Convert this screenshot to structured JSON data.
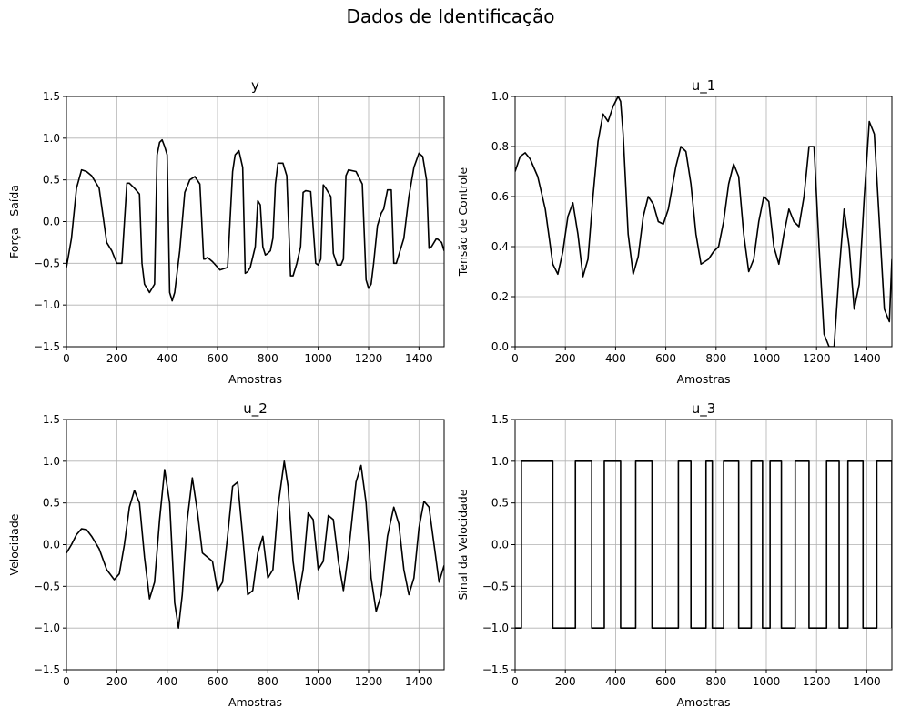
{
  "figure": {
    "suptitle": "Dados de Identificação",
    "line_color": "#000000",
    "grid_color": "#b0b0b0"
  },
  "chart_data": [
    {
      "type": "line",
      "title": "y",
      "xlabel": "Amostras",
      "ylabel": "Força - Saída",
      "xlim": [
        0,
        1500
      ],
      "ylim": [
        -1.5,
        1.5
      ],
      "xticks": [
        0,
        200,
        400,
        600,
        800,
        1000,
        1200,
        1400
      ],
      "xtick_labels": [
        "0",
        "200",
        "400",
        "600",
        "800",
        "1000",
        "1200",
        "1400"
      ],
      "yticks": [
        -1.5,
        -1.0,
        -0.5,
        0.0,
        0.5,
        1.0,
        1.5
      ],
      "ytick_labels": [
        "−1.5",
        "−1.0",
        "−0.5",
        "0.0",
        "0.5",
        "1.0",
        "1.5"
      ],
      "grid": true,
      "x": [
        0,
        20,
        40,
        60,
        80,
        100,
        130,
        160,
        180,
        200,
        220,
        240,
        250,
        270,
        290,
        300,
        310,
        330,
        350,
        360,
        370,
        380,
        390,
        400,
        410,
        420,
        430,
        450,
        470,
        490,
        510,
        530,
        545,
        550,
        560,
        580,
        610,
        640,
        660,
        670,
        685,
        700,
        710,
        720,
        730,
        750,
        760,
        770,
        780,
        790,
        800,
        810,
        820,
        830,
        840,
        860,
        875,
        890,
        900,
        915,
        930,
        940,
        950,
        970,
        990,
        1000,
        1010,
        1020,
        1030,
        1050,
        1060,
        1075,
        1090,
        1100,
        1110,
        1120,
        1150,
        1175,
        1190,
        1200,
        1210,
        1220,
        1235,
        1250,
        1260,
        1275,
        1290,
        1300,
        1310,
        1320,
        1340,
        1360,
        1380,
        1400,
        1415,
        1430,
        1440,
        1450,
        1470,
        1490,
        1500
      ],
      "y": [
        -0.55,
        -0.2,
        0.4,
        0.62,
        0.6,
        0.55,
        0.4,
        -0.25,
        -0.35,
        -0.5,
        -0.5,
        0.46,
        0.46,
        0.4,
        0.33,
        -0.5,
        -0.75,
        -0.85,
        -0.75,
        0.8,
        0.95,
        0.98,
        0.9,
        0.8,
        -0.85,
        -0.95,
        -0.85,
        -0.35,
        0.35,
        0.5,
        0.54,
        0.45,
        -0.45,
        -0.45,
        -0.43,
        -0.48,
        -0.58,
        -0.55,
        0.6,
        0.8,
        0.85,
        0.65,
        -0.62,
        -0.6,
        -0.55,
        -0.3,
        0.25,
        0.2,
        -0.3,
        -0.4,
        -0.38,
        -0.35,
        -0.2,
        0.45,
        0.7,
        0.7,
        0.55,
        -0.65,
        -0.65,
        -0.5,
        -0.3,
        0.35,
        0.37,
        0.36,
        -0.5,
        -0.52,
        -0.45,
        0.44,
        0.4,
        0.3,
        -0.38,
        -0.52,
        -0.52,
        -0.45,
        0.55,
        0.62,
        0.6,
        0.45,
        -0.7,
        -0.8,
        -0.75,
        -0.5,
        -0.05,
        0.1,
        0.15,
        0.38,
        0.38,
        -0.5,
        -0.5,
        -0.4,
        -0.2,
        0.3,
        0.65,
        0.82,
        0.78,
        0.5,
        -0.32,
        -0.3,
        -0.2,
        -0.25,
        -0.35
      ]
    },
    {
      "type": "line",
      "title": "u_1",
      "xlabel": "Amostras",
      "ylabel": "Tensão de Controle",
      "xlim": [
        0,
        1500
      ],
      "ylim": [
        0.0,
        1.0
      ],
      "xticks": [
        0,
        200,
        400,
        600,
        800,
        1000,
        1200,
        1400
      ],
      "xtick_labels": [
        "0",
        "200",
        "400",
        "600",
        "800",
        "1000",
        "1200",
        "1400"
      ],
      "yticks": [
        0.0,
        0.2,
        0.4,
        0.6,
        0.8,
        1.0
      ],
      "ytick_labels": [
        "0.0",
        "0.2",
        "0.4",
        "0.6",
        "0.8",
        "1.0"
      ],
      "grid": true,
      "x": [
        0,
        20,
        40,
        60,
        90,
        120,
        150,
        170,
        190,
        210,
        230,
        250,
        270,
        290,
        310,
        330,
        350,
        370,
        390,
        410,
        420,
        430,
        450,
        470,
        490,
        510,
        530,
        550,
        570,
        590,
        610,
        640,
        660,
        680,
        700,
        720,
        740,
        770,
        790,
        810,
        830,
        850,
        870,
        890,
        910,
        930,
        950,
        970,
        990,
        1010,
        1030,
        1050,
        1070,
        1090,
        1110,
        1130,
        1150,
        1170,
        1190,
        1210,
        1230,
        1250,
        1270,
        1290,
        1310,
        1330,
        1350,
        1370,
        1390,
        1410,
        1430,
        1450,
        1470,
        1490,
        1500
      ],
      "y": [
        0.7,
        0.76,
        0.775,
        0.75,
        0.68,
        0.55,
        0.33,
        0.29,
        0.38,
        0.52,
        0.575,
        0.45,
        0.28,
        0.35,
        0.6,
        0.82,
        0.93,
        0.9,
        0.96,
        1.0,
        0.98,
        0.85,
        0.45,
        0.29,
        0.36,
        0.52,
        0.6,
        0.57,
        0.5,
        0.49,
        0.55,
        0.72,
        0.8,
        0.78,
        0.65,
        0.45,
        0.33,
        0.35,
        0.38,
        0.4,
        0.5,
        0.65,
        0.73,
        0.68,
        0.45,
        0.3,
        0.35,
        0.5,
        0.6,
        0.58,
        0.4,
        0.33,
        0.45,
        0.55,
        0.5,
        0.48,
        0.6,
        0.8,
        0.8,
        0.4,
        0.05,
        0.0,
        0.0,
        0.3,
        0.55,
        0.4,
        0.15,
        0.25,
        0.6,
        0.9,
        0.85,
        0.5,
        0.15,
        0.1,
        0.35
      ]
    },
    {
      "type": "line",
      "title": "u_2",
      "xlabel": "Amostras",
      "ylabel": "Velocidade",
      "xlim": [
        0,
        1500
      ],
      "ylim": [
        -1.5,
        1.5
      ],
      "xticks": [
        0,
        200,
        400,
        600,
        800,
        1000,
        1200,
        1400
      ],
      "xtick_labels": [
        "0",
        "200",
        "400",
        "600",
        "800",
        "1000",
        "1200",
        "1400"
      ],
      "yticks": [
        -1.5,
        -1.0,
        -0.5,
        0.0,
        0.5,
        1.0,
        1.5
      ],
      "ytick_labels": [
        "−1.5",
        "−1.0",
        "−0.5",
        "0.0",
        "0.5",
        "1.0",
        "1.5"
      ],
      "grid": true,
      "x": [
        0,
        20,
        40,
        60,
        80,
        100,
        130,
        160,
        190,
        210,
        230,
        250,
        270,
        290,
        310,
        330,
        350,
        370,
        390,
        410,
        430,
        445,
        460,
        480,
        500,
        520,
        540,
        560,
        580,
        600,
        620,
        640,
        660,
        680,
        700,
        720,
        740,
        760,
        780,
        800,
        820,
        840,
        865,
        880,
        900,
        920,
        940,
        960,
        980,
        1000,
        1020,
        1040,
        1060,
        1080,
        1100,
        1120,
        1150,
        1170,
        1190,
        1210,
        1230,
        1250,
        1275,
        1300,
        1320,
        1340,
        1360,
        1380,
        1400,
        1420,
        1440,
        1460,
        1480,
        1500
      ],
      "y": [
        -0.1,
        0.0,
        0.12,
        0.19,
        0.18,
        0.1,
        -0.05,
        -0.3,
        -0.42,
        -0.35,
        0.0,
        0.45,
        0.65,
        0.5,
        -0.15,
        -0.65,
        -0.45,
        0.3,
        0.9,
        0.5,
        -0.7,
        -1.0,
        -0.6,
        0.3,
        0.8,
        0.4,
        -0.1,
        -0.15,
        -0.2,
        -0.55,
        -0.45,
        0.1,
        0.7,
        0.75,
        0.1,
        -0.6,
        -0.55,
        -0.1,
        0.1,
        -0.4,
        -0.3,
        0.45,
        1.0,
        0.7,
        -0.2,
        -0.65,
        -0.3,
        0.38,
        0.3,
        -0.3,
        -0.2,
        0.35,
        0.3,
        -0.2,
        -0.55,
        -0.1,
        0.75,
        0.95,
        0.5,
        -0.4,
        -0.8,
        -0.6,
        0.1,
        0.45,
        0.25,
        -0.3,
        -0.6,
        -0.4,
        0.2,
        0.52,
        0.45,
        0.0,
        -0.45,
        -0.25
      ]
    },
    {
      "type": "line",
      "title": "u_3",
      "xlabel": "Amostras",
      "ylabel": "Sinal da Velocidade",
      "xlim": [
        0,
        1500
      ],
      "ylim": [
        -1.5,
        1.5
      ],
      "xticks": [
        0,
        200,
        400,
        600,
        800,
        1000,
        1200,
        1400
      ],
      "xtick_labels": [
        "0",
        "200",
        "400",
        "600",
        "800",
        "1000",
        "1200",
        "1400"
      ],
      "yticks": [
        -1.5,
        -1.0,
        -0.5,
        0.0,
        0.5,
        1.0,
        1.5
      ],
      "ytick_labels": [
        "−1.5",
        "−1.0",
        "−0.5",
        "0.0",
        "0.5",
        "1.0",
        "1.5"
      ],
      "grid": true,
      "step": true,
      "x": [
        0,
        25,
        150,
        240,
        305,
        355,
        420,
        480,
        545,
        650,
        700,
        760,
        785,
        830,
        890,
        940,
        985,
        1015,
        1060,
        1115,
        1170,
        1240,
        1290,
        1325,
        1385,
        1440,
        1500
      ],
      "y": [
        -1,
        1,
        -1,
        1,
        -1,
        1,
        -1,
        1,
        -1,
        1,
        -1,
        1,
        -1,
        1,
        -1,
        1,
        -1,
        1,
        -1,
        1,
        -1,
        1,
        -1,
        1,
        -1,
        1,
        -1
      ]
    }
  ]
}
